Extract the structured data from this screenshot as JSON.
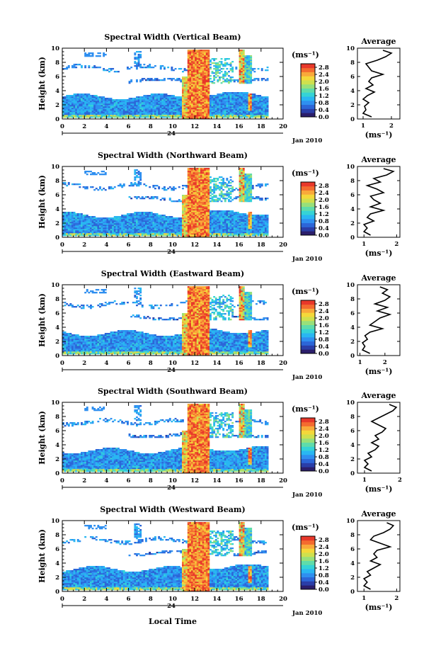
{
  "chart_data": [
    {
      "type": "heatmap",
      "title": "Spectral Width (Vertical Beam)",
      "ylabel": "Height (km)",
      "xlim": [
        0,
        20
      ],
      "ylim": [
        0,
        10
      ],
      "x_ticks": [
        "0",
        "2",
        "4",
        "6",
        "8",
        "10",
        "12",
        "14",
        "16",
        "18",
        "20"
      ],
      "y_ticks": [
        "0",
        "2",
        "4",
        "6",
        "8",
        "10"
      ],
      "date_marker": "24",
      "date_label": "Jan 2010",
      "colorbar": {
        "unit": "(ms⁻¹)",
        "ticks": [
          "0.0",
          "0.4",
          "0.8",
          "1.2",
          "1.6",
          "2.0",
          "2.4",
          "2.8"
        ],
        "range": [
          0,
          3.0
        ]
      },
      "average": {
        "title": "Average",
        "xlabel": "(ms⁻¹)",
        "x_ticks": [
          "1",
          "2"
        ],
        "xlim": [
          0.8,
          2.3
        ],
        "heights": [
          0.3,
          0.8,
          1.3,
          1.8,
          2.3,
          2.8,
          3.3,
          3.8,
          4.3,
          4.8,
          5.3,
          5.8,
          6.3,
          6.8,
          7.3,
          7.8,
          8.3,
          8.8,
          9.3,
          9.7
        ],
        "values": [
          1.3,
          1.0,
          1.1,
          1.05,
          1.2,
          1.0,
          1.15,
          1.4,
          1.1,
          1.35,
          1.2,
          1.3,
          1.7,
          1.3,
          1.2,
          1.1,
          1.5,
          1.8,
          2.0,
          1.7
        ]
      }
    },
    {
      "type": "heatmap",
      "title": "Spectral Width (Northward Beam)",
      "ylabel": "Height (km)",
      "xlim": [
        0,
        20
      ],
      "ylim": [
        0,
        10
      ],
      "x_ticks": [
        "0",
        "2",
        "4",
        "6",
        "8",
        "10",
        "12",
        "14",
        "16",
        "18",
        "20"
      ],
      "y_ticks": [
        "0",
        "2",
        "4",
        "6",
        "8",
        "10"
      ],
      "date_marker": "24",
      "date_label": "Jan 2010",
      "colorbar": {
        "unit": "(ms⁻¹)",
        "ticks": [
          "0.0",
          "0.4",
          "0.8",
          "1.2",
          "1.6",
          "2.0",
          "2.4",
          "2.8"
        ],
        "range": [
          0,
          3.0
        ]
      },
      "average": {
        "title": "Average",
        "xlabel": "(ms⁻¹)",
        "x_ticks": [
          "1",
          "2"
        ],
        "xlim": [
          0.8,
          2.1
        ],
        "heights": [
          0.3,
          0.8,
          1.3,
          1.8,
          2.3,
          2.8,
          3.3,
          3.8,
          4.3,
          4.8,
          5.3,
          5.8,
          6.3,
          6.8,
          7.3,
          7.8,
          8.3,
          8.8,
          9.3,
          9.7
        ],
        "values": [
          1.2,
          1.0,
          1.1,
          1.0,
          1.3,
          1.1,
          1.2,
          1.6,
          1.2,
          1.5,
          1.3,
          1.2,
          1.6,
          1.4,
          1.1,
          1.5,
          1.3,
          1.7,
          1.9,
          1.6
        ]
      }
    },
    {
      "type": "heatmap",
      "title": "Spectral Width (Eastward Beam)",
      "ylabel": "Height (km)",
      "xlim": [
        0,
        20
      ],
      "ylim": [
        0,
        10
      ],
      "x_ticks": [
        "0",
        "2",
        "4",
        "6",
        "8",
        "10",
        "12",
        "14",
        "16",
        "18",
        "20"
      ],
      "y_ticks": [
        "0",
        "2",
        "4",
        "6",
        "8",
        "10"
      ],
      "date_marker": "24",
      "date_label": "Jan 2010",
      "colorbar": {
        "unit": "(ms⁻¹)",
        "ticks": [
          "0.0",
          "0.4",
          "0.8",
          "1.2",
          "1.6",
          "2.0",
          "2.4",
          "2.8"
        ],
        "range": [
          0,
          3.0
        ]
      },
      "average": {
        "title": "Average",
        "xlabel": "(ms⁻¹)",
        "x_ticks": [
          "1",
          "2"
        ],
        "xlim": [
          0.9,
          2.6
        ],
        "heights": [
          0.3,
          0.8,
          1.3,
          1.8,
          2.3,
          2.8,
          3.3,
          3.8,
          4.3,
          4.8,
          5.3,
          5.8,
          6.3,
          6.8,
          7.3,
          7.8,
          8.3,
          8.8,
          9.3,
          9.7
        ],
        "values": [
          1.4,
          1.1,
          1.2,
          1.1,
          1.3,
          1.2,
          1.4,
          1.9,
          1.4,
          1.6,
          1.8,
          2.2,
          1.7,
          2.1,
          1.6,
          2.0,
          2.2,
          1.9,
          2.1,
          1.8
        ]
      }
    },
    {
      "type": "heatmap",
      "title": "Spectral Width (Southward Beam)",
      "ylabel": "Height (km)",
      "xlim": [
        0,
        20
      ],
      "ylim": [
        0,
        10
      ],
      "x_ticks": [
        "0",
        "2",
        "4",
        "6",
        "8",
        "10",
        "12",
        "14",
        "16",
        "18",
        "20"
      ],
      "y_ticks": [
        "0",
        "2",
        "4",
        "6",
        "8",
        "10"
      ],
      "date_marker": "24",
      "date_label": "Jan 2010",
      "colorbar": {
        "unit": "(ms⁻¹)",
        "ticks": [
          "0.0",
          "0.4",
          "0.8",
          "1.2",
          "1.6",
          "2.0",
          "2.4",
          "2.8"
        ],
        "range": [
          0,
          3.0
        ]
      },
      "average": {
        "title": "Average",
        "xlabel": "(ms⁻¹)",
        "x_ticks": [
          "1",
          "2"
        ],
        "xlim": [
          0.8,
          2.0
        ],
        "heights": [
          0.3,
          0.8,
          1.3,
          1.8,
          2.3,
          2.8,
          3.3,
          3.8,
          4.3,
          4.8,
          5.3,
          5.8,
          6.3,
          6.8,
          7.3,
          7.8,
          8.3,
          8.8,
          9.3,
          9.7
        ],
        "values": [
          1.2,
          1.0,
          1.1,
          1.0,
          1.2,
          1.1,
          1.3,
          1.4,
          1.2,
          1.4,
          1.3,
          1.5,
          1.6,
          1.4,
          1.2,
          1.4,
          1.6,
          1.8,
          1.9,
          1.7
        ]
      }
    },
    {
      "type": "heatmap",
      "title": "Spectral Width (Westward Beam)",
      "ylabel": "Height (km)",
      "xlabel": "Local Time",
      "xlim": [
        0,
        20
      ],
      "ylim": [
        0,
        10
      ],
      "x_ticks": [
        "0",
        "2",
        "4",
        "6",
        "8",
        "10",
        "12",
        "14",
        "16",
        "18",
        "20"
      ],
      "y_ticks": [
        "0",
        "2",
        "4",
        "6",
        "8",
        "10"
      ],
      "date_marker": "24",
      "date_label": "Jan 2010",
      "colorbar": {
        "unit": "(ms⁻¹)",
        "ticks": [
          "0.0",
          "0.4",
          "0.8",
          "1.2",
          "1.6",
          "2.0",
          "2.4",
          "2.8"
        ],
        "range": [
          0,
          3.0
        ]
      },
      "average": {
        "title": "Average",
        "xlabel": "(ms⁻¹)",
        "x_ticks": [
          "1",
          "2"
        ],
        "xlim": [
          0.8,
          2.1
        ],
        "heights": [
          0.3,
          0.8,
          1.3,
          1.8,
          2.3,
          2.8,
          3.3,
          3.8,
          4.3,
          4.8,
          5.3,
          5.8,
          6.3,
          6.8,
          7.3,
          7.8,
          8.3,
          8.8,
          9.3,
          9.7
        ],
        "values": [
          1.2,
          1.0,
          1.1,
          1.0,
          1.2,
          1.1,
          1.3,
          1.5,
          1.2,
          1.4,
          1.3,
          1.4,
          1.8,
          1.5,
          1.2,
          1.3,
          1.6,
          1.8,
          1.9,
          1.7
        ]
      }
    }
  ],
  "colormap": [
    "#2b1e6b",
    "#2a3ea8",
    "#2c66d8",
    "#2f8ff0",
    "#29b7f2",
    "#35d3d6",
    "#5fdcaa",
    "#98e07a",
    "#cfe04e",
    "#f4d83a",
    "#f9a93a",
    "#f46b2f",
    "#e8382a"
  ]
}
